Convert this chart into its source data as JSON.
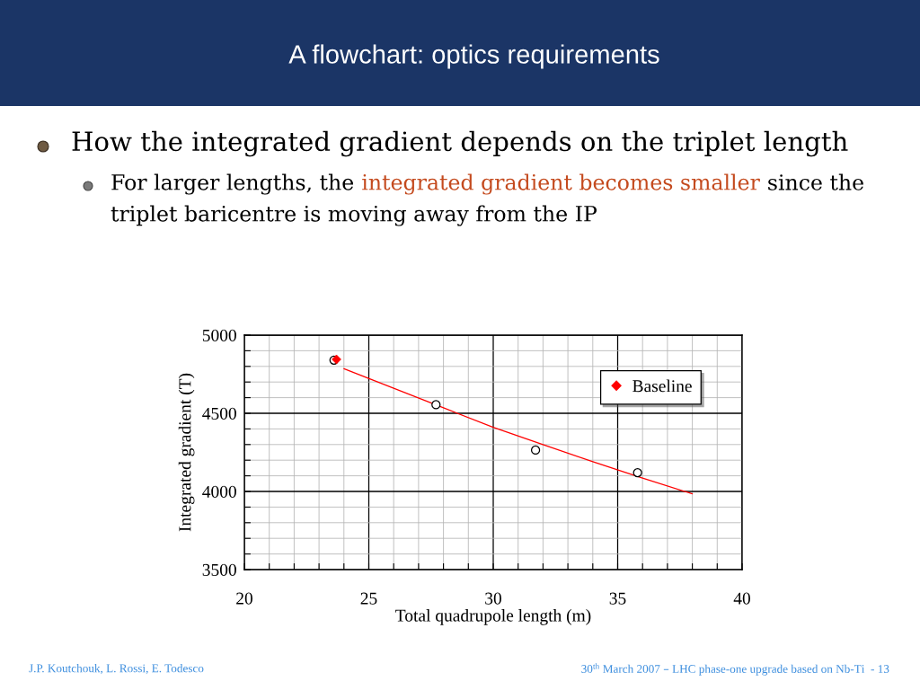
{
  "chart_data": {
    "type": "scatter",
    "title": "A flowchart: optics requirements",
    "subtitle": "How the integrated gradient depends on the triplet length",
    "xlabel": "Total quadrupole length (m)",
    "ylabel": "Integrated gradient (T)",
    "annotations": [
      "For larger lengths, the",
      "integrated gradient becomes smaller",
      "since the",
      "triplet baricentre is moving away from the IP",
      "J.P. Koutchouk, L. Rossi, E. Todesco",
      "30$^{th}$ March 2007 – LHC phase-one upgrade based on Nb-Ti  - 13"
    ],
    "series": [
      {
        "type": "line",
        "color": "#ff0000",
        "marker": "none",
        "x": [
          24,
          26,
          28,
          30,
          32,
          34,
          36,
          38
        ],
        "values": [
          4785,
          4660,
          4535,
          4410,
          4300,
          4190,
          4085,
          3985
        ]
      },
      {
        "color": "#000000",
        "marker": "circle",
        "x": [
          23.6,
          27.7,
          31.7,
          35.8
        ],
        "values": [
          4840,
          4555,
          4265,
          4120
        ]
      },
      {
        "name": "Baseline",
        "color": "#ff0000",
        "marker": "diamond",
        "x": [
          23.7
        ],
        "values": [
          4845
        ]
      }
    ],
    "xlim": [
      20,
      40
    ],
    "ylim": [
      3500,
      5000
    ],
    "xticks": [
      20,
      {
        "value": 21,
        "label": null
      },
      {
        "value": 22,
        "label": null
      },
      {
        "value": 23,
        "label": null
      },
      {
        "value": 24,
        "label": null
      },
      25,
      {
        "value": 26,
        "label": null
      },
      {
        "value": 27,
        "label": null
      },
      {
        "value": 28,
        "label": null
      },
      {
        "value": 29,
        "label": null
      },
      30,
      {
        "value": 31,
        "label": null
      },
      {
        "value": 32,
        "label": null
      },
      {
        "value": 33,
        "label": null
      },
      {
        "value": 34,
        "label": null
      },
      35,
      {
        "value": 36,
        "label": null
      },
      {
        "value": 37,
        "label": null
      },
      {
        "value": 38,
        "label": null
      },
      {
        "value": 39,
        "label": null
      },
      40
    ],
    "yticks": [
      3500,
      {
        "value": 3600,
        "label": null
      },
      {
        "value": 3700,
        "label": null
      },
      {
        "value": 3800,
        "label": null
      },
      {
        "value": 3900,
        "label": null
      },
      4000,
      {
        "value": 4100,
        "label": null
      },
      {
        "value": 4200,
        "label": null
      },
      {
        "value": 4300,
        "label": null
      },
      {
        "value": 4400,
        "label": null
      },
      4500,
      {
        "value": 4600,
        "label": null
      },
      {
        "value": 4700,
        "label": null
      },
      {
        "value": 4800,
        "label": null
      },
      {
        "value": 4900,
        "label": null
      },
      5000
    ],
    "grid": true,
    "legend": "top right"
  }
}
